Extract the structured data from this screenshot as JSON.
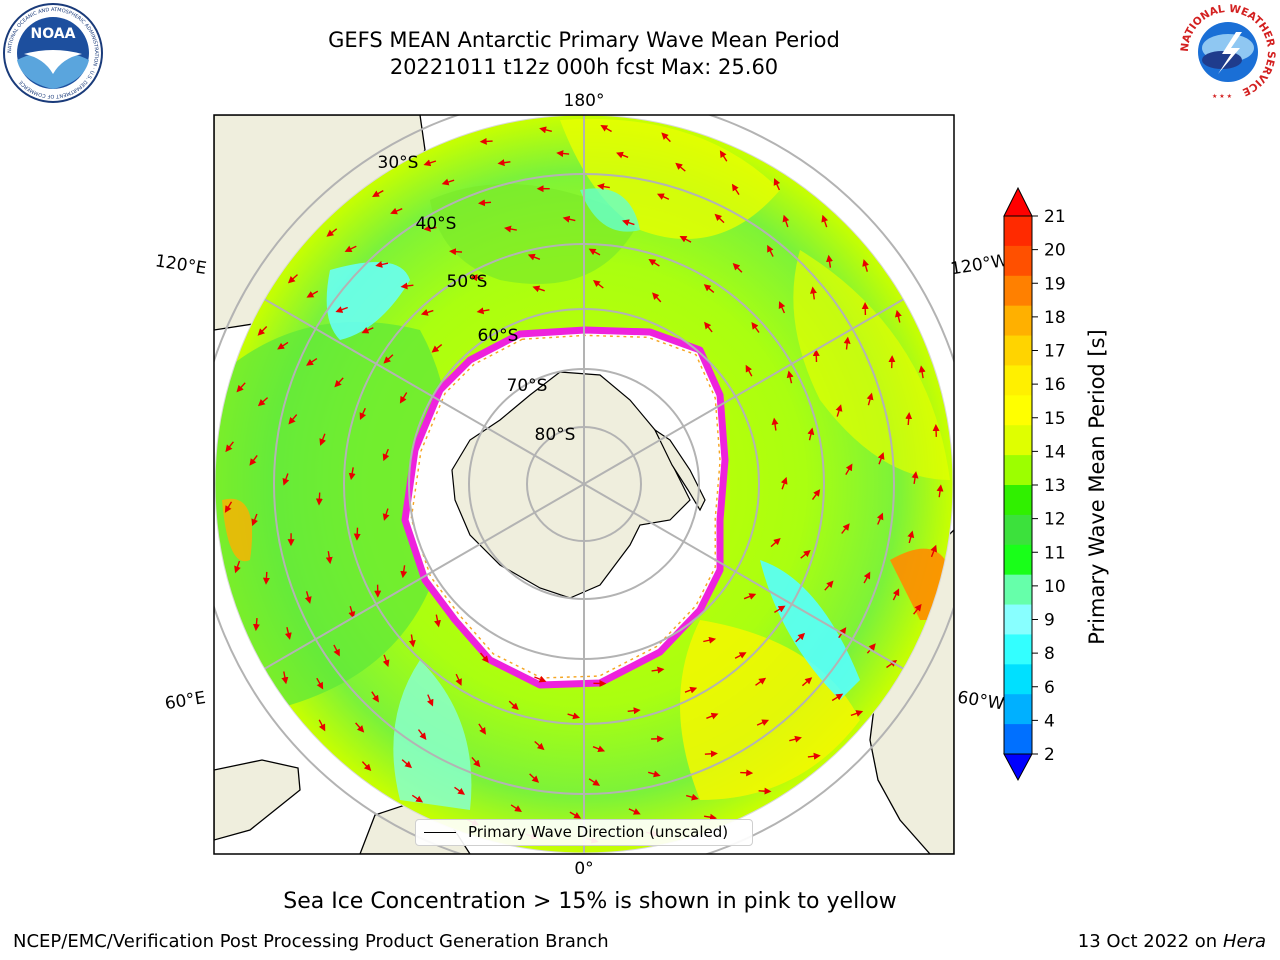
{
  "title": {
    "line1": "GEFS MEAN Antarctic Primary Wave Mean Period",
    "line2": "20221011 t12z 000h fcst   Max: 25.60"
  },
  "logos": {
    "left": "noaa-logo",
    "right": "nws-logo",
    "noaa_text": "NOAA",
    "noaa_ring": "NATIONAL OCEANIC AND ATMOSPHERIC ADMINISTRATION · U.S. DEPARTMENT OF COMMERCE",
    "nws_ring": "NATIONAL WEATHER SERVICE"
  },
  "map": {
    "projection": "south-polar-stereographic",
    "longitude_labels": [
      "180°",
      "120°E",
      "120°W",
      "60°E",
      "60°W",
      "0°"
    ],
    "latitude_labels": [
      "30°S",
      "40°S",
      "50°S",
      "60°S",
      "70°S",
      "80°S"
    ],
    "legend_label": "Primary Wave Direction (unscaled)",
    "colors": {
      "land": "#efeedd",
      "ice_edge": "#ee22dd",
      "ice_inner": "#f5a623",
      "arrow": "#e80000",
      "grid": "#b3b3b3"
    }
  },
  "colorbar": {
    "label": "Primary Wave Mean Period [s]",
    "ticks": [
      "21",
      "20",
      "19",
      "18",
      "17",
      "16",
      "15",
      "14",
      "13",
      "12",
      "11",
      "10",
      "9",
      "8",
      "6",
      "4",
      "2"
    ],
    "colors": [
      "#ff2a00",
      "#ff5000",
      "#ff8000",
      "#ffb000",
      "#ffd400",
      "#fff000",
      "#ffff00",
      "#dfff00",
      "#9cff00",
      "#30f000",
      "#3ce13c",
      "#19ff19",
      "#66ffaa",
      "#88ffff",
      "#33ffff",
      "#00e0ff",
      "#00b0ff",
      "#0070ff"
    ],
    "under_color": "#0000ff",
    "over_color": "#ff0000"
  },
  "footer": {
    "ice_note": "Sea Ice Concentration > 15% is shown in pink to yellow",
    "credit": "NCEP/EMC/Verification Post Processing Product Generation Branch",
    "date_prefix": "13 Oct 2022 on ",
    "date_machine": "Hera"
  }
}
